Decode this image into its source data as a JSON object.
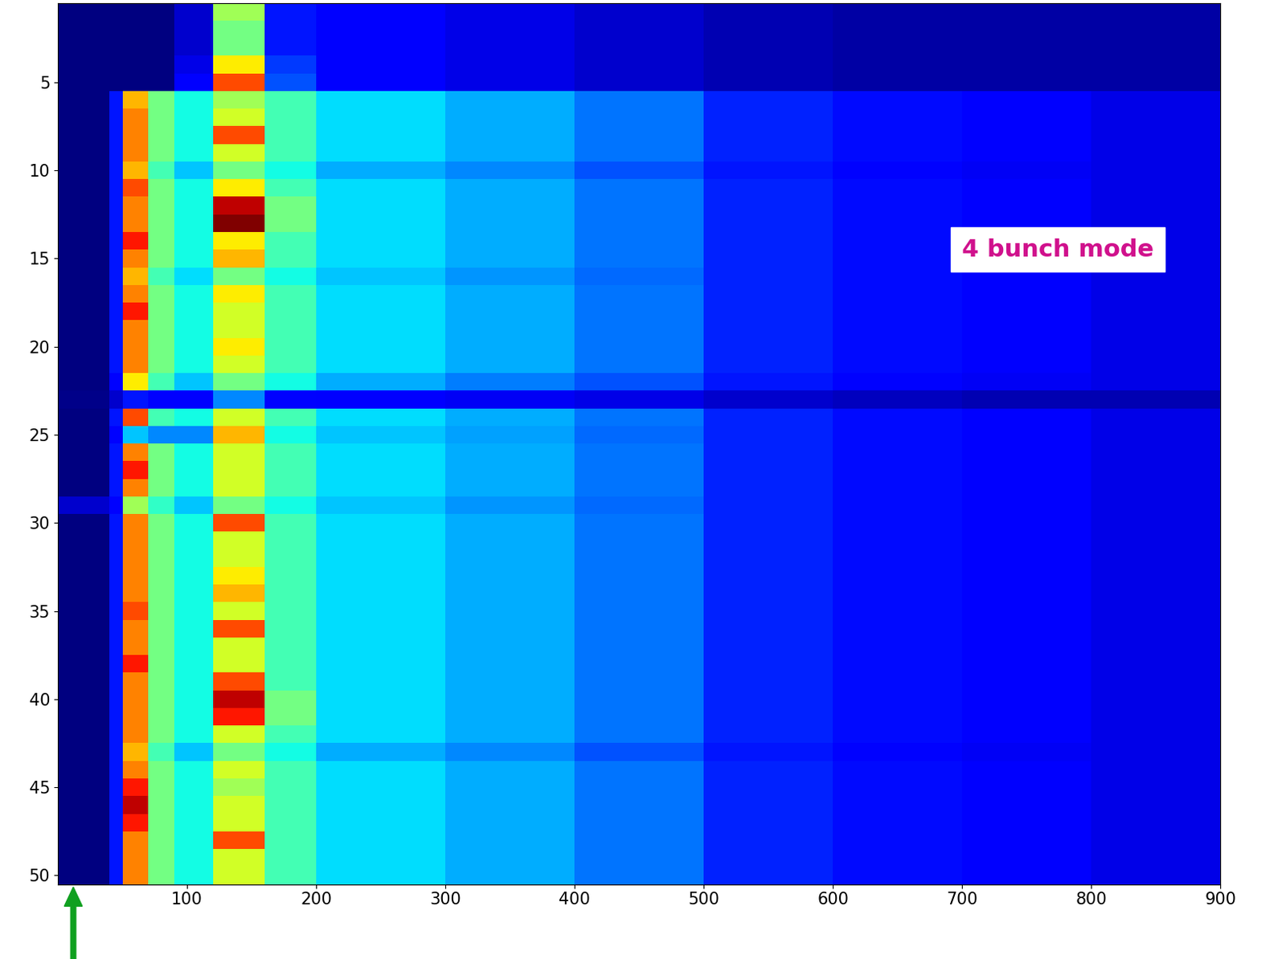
{
  "chart_data": {
    "type": "heatmap",
    "annotations": [
      "4 bunch mode"
    ],
    "xlim": [
      0,
      900
    ],
    "xticks": [
      100,
      200,
      300,
      400,
      500,
      600,
      700,
      800,
      900
    ],
    "ylim": [
      50.5,
      0.5
    ],
    "yticks": [
      5,
      10,
      15,
      20,
      25,
      30,
      35,
      40,
      45,
      50
    ],
    "grid": false,
    "bins": [
      0,
      40,
      50,
      70,
      90,
      120,
      160,
      200,
      300,
      400,
      500,
      600,
      700,
      800,
      900
    ],
    "y": [
      1,
      2,
      3,
      4,
      5,
      6,
      7,
      8,
      9,
      10,
      11,
      12,
      13,
      14,
      15,
      16,
      17,
      18,
      19,
      20,
      21,
      22,
      23,
      24,
      25,
      26,
      27,
      28,
      29,
      30,
      31,
      32,
      33,
      34,
      35,
      36,
      37,
      38,
      39,
      40,
      41,
      42,
      43,
      44,
      45,
      46,
      47,
      48,
      49,
      50
    ],
    "cells": [
      [
        0.2,
        0.2,
        0.2,
        0.2,
        0.8,
        5,
        1.5,
        1.2,
        1,
        0.8,
        0.6,
        0.5,
        0.5,
        0.5
      ],
      [
        0.2,
        0.2,
        0.2,
        0.2,
        0.8,
        4.5,
        1.5,
        1.2,
        1,
        0.8,
        0.6,
        0.5,
        0.5,
        0.5
      ],
      [
        0.2,
        0.2,
        0.2,
        0.2,
        0.8,
        4.5,
        1.5,
        1.2,
        1,
        0.8,
        0.6,
        0.5,
        0.5,
        0.5
      ],
      [
        0.2,
        0.2,
        0.2,
        0.2,
        1,
        6,
        1.8,
        1.2,
        1,
        0.8,
        0.6,
        0.5,
        0.5,
        0.5
      ],
      [
        0.2,
        0.2,
        0.2,
        0.2,
        1.2,
        7.5,
        2,
        1.2,
        1,
        0.8,
        0.6,
        0.5,
        0.5,
        0.5
      ],
      [
        0.2,
        1.5,
        6.5,
        4.5,
        3.5,
        5,
        4,
        3.2,
        2.8,
        2.3,
        1.6,
        1.4,
        1.2,
        1.0
      ],
      [
        0.2,
        1.5,
        7,
        4.5,
        3.5,
        5.5,
        4,
        3.2,
        2.8,
        2.3,
        1.6,
        1.4,
        1.2,
        1.0
      ],
      [
        0.2,
        1.5,
        7,
        4.5,
        3.5,
        7.5,
        4,
        3.2,
        2.8,
        2.3,
        1.6,
        1.4,
        1.2,
        1.0
      ],
      [
        0.2,
        1.5,
        7,
        4.5,
        3.5,
        5.5,
        4,
        3.2,
        2.8,
        2.3,
        1.6,
        1.4,
        1.2,
        1.0
      ],
      [
        0.2,
        1.5,
        6.5,
        4,
        3,
        4.5,
        3.5,
        2.8,
        2.5,
        2,
        1.5,
        1.3,
        1.1,
        1.0
      ],
      [
        0.2,
        1.5,
        7.5,
        4.5,
        3.5,
        6,
        4,
        3.2,
        2.8,
        2.3,
        1.6,
        1.4,
        1.2,
        1.0
      ],
      [
        0.2,
        1.5,
        7,
        4.5,
        3.5,
        8.5,
        4.5,
        3.2,
        2.8,
        2.3,
        1.6,
        1.4,
        1.2,
        1.0
      ],
      [
        0.2,
        1.5,
        7,
        4.5,
        3.5,
        9,
        4.5,
        3.2,
        2.8,
        2.3,
        1.6,
        1.4,
        1.2,
        1.0
      ],
      [
        0.2,
        1.5,
        8,
        4.5,
        3.5,
        6,
        4,
        3.2,
        2.8,
        2.3,
        1.6,
        1.4,
        1.2,
        1.0
      ],
      [
        0.2,
        1.5,
        7,
        4.5,
        3.5,
        6.5,
        4,
        3.2,
        2.8,
        2.3,
        1.6,
        1.4,
        1.2,
        1.0
      ],
      [
        0.2,
        1.5,
        6.5,
        4,
        3.2,
        4.5,
        3.5,
        3,
        2.6,
        2.2,
        1.6,
        1.4,
        1.2,
        1.0
      ],
      [
        0.2,
        1.5,
        7,
        4.5,
        3.5,
        6,
        4,
        3.2,
        2.8,
        2.3,
        1.6,
        1.4,
        1.2,
        1.0
      ],
      [
        0.2,
        1.5,
        8,
        4.5,
        3.5,
        5.5,
        4,
        3.2,
        2.8,
        2.3,
        1.6,
        1.4,
        1.2,
        1.0
      ],
      [
        0.2,
        1.5,
        7,
        4.5,
        3.5,
        5.5,
        4,
        3.2,
        2.8,
        2.3,
        1.6,
        1.4,
        1.2,
        1.0
      ],
      [
        0.2,
        1.5,
        7,
        4.5,
        3.5,
        6,
        4,
        3.2,
        2.8,
        2.3,
        1.6,
        1.4,
        1.2,
        1.0
      ],
      [
        0.2,
        1.5,
        7,
        4.5,
        3.5,
        5.5,
        4,
        3.2,
        2.8,
        2.3,
        1.6,
        1.4,
        1.2,
        1.0
      ],
      [
        0.2,
        1.3,
        6,
        4,
        3,
        4.5,
        3.5,
        2.8,
        2.4,
        2,
        1.5,
        1.3,
        1.1,
        1.0
      ],
      [
        0.3,
        0.8,
        1.5,
        1.2,
        1.2,
        2.5,
        1.3,
        1.2,
        1.1,
        1,
        0.8,
        0.7,
        0.6,
        0.6
      ],
      [
        0.2,
        1.5,
        7.5,
        4,
        3.5,
        5.5,
        4,
        3.2,
        2.8,
        2.3,
        1.6,
        1.4,
        1.2,
        1.0
      ],
      [
        0.2,
        1.3,
        3,
        2.5,
        2.5,
        6.5,
        3.5,
        3,
        2.7,
        2.2,
        1.6,
        1.4,
        1.2,
        1.0
      ],
      [
        0.2,
        1.5,
        7,
        4.5,
        3.5,
        5.5,
        4,
        3.2,
        2.8,
        2.3,
        1.6,
        1.4,
        1.2,
        1.0
      ],
      [
        0.2,
        1.5,
        8,
        4.5,
        3.5,
        5.5,
        4,
        3.2,
        2.8,
        2.3,
        1.6,
        1.4,
        1.2,
        1.0
      ],
      [
        0.2,
        1.5,
        7,
        4.5,
        3.5,
        5.5,
        4,
        3.2,
        2.8,
        2.3,
        1.6,
        1.4,
        1.2,
        1.0
      ],
      [
        0.8,
        1.3,
        5,
        3.8,
        3,
        4.5,
        3.5,
        3,
        2.6,
        2.2,
        1.6,
        1.4,
        1.2,
        1.0
      ],
      [
        0.2,
        1.5,
        7,
        4.5,
        3.5,
        7.5,
        4,
        3.2,
        2.8,
        2.3,
        1.6,
        1.4,
        1.2,
        1.0
      ],
      [
        0.2,
        1.5,
        7,
        4.5,
        3.5,
        5.5,
        4,
        3.2,
        2.8,
        2.3,
        1.6,
        1.4,
        1.2,
        1.0
      ],
      [
        0.2,
        1.5,
        7,
        4.5,
        3.5,
        5.5,
        4,
        3.2,
        2.8,
        2.3,
        1.6,
        1.4,
        1.2,
        1.0
      ],
      [
        0.2,
        1.5,
        7,
        4.5,
        3.5,
        6,
        4,
        3.2,
        2.8,
        2.3,
        1.6,
        1.4,
        1.2,
        1.0
      ],
      [
        0.2,
        1.5,
        7,
        4.5,
        3.5,
        6.5,
        4,
        3.2,
        2.8,
        2.3,
        1.6,
        1.4,
        1.2,
        1.0
      ],
      [
        0.2,
        1.5,
        7.5,
        4.5,
        3.5,
        5.5,
        4,
        3.2,
        2.8,
        2.3,
        1.6,
        1.4,
        1.2,
        1.0
      ],
      [
        0.2,
        1.5,
        7,
        4.5,
        3.5,
        7.5,
        4,
        3.2,
        2.8,
        2.3,
        1.6,
        1.4,
        1.2,
        1.0
      ],
      [
        0.2,
        1.5,
        7,
        4.5,
        3.5,
        5.5,
        4,
        3.2,
        2.8,
        2.3,
        1.6,
        1.4,
        1.2,
        1.0
      ],
      [
        0.2,
        1.5,
        8,
        4.5,
        3.5,
        5.5,
        4,
        3.2,
        2.8,
        2.3,
        1.6,
        1.4,
        1.2,
        1.0
      ],
      [
        0.2,
        1.5,
        7,
        4.5,
        3.5,
        7.5,
        4,
        3.2,
        2.8,
        2.3,
        1.6,
        1.4,
        1.2,
        1.0
      ],
      [
        0.2,
        1.5,
        7,
        4.5,
        3.5,
        8.5,
        4.5,
        3.2,
        2.8,
        2.3,
        1.6,
        1.4,
        1.2,
        1.0
      ],
      [
        0.2,
        1.5,
        7,
        4.5,
        3.5,
        8,
        4.5,
        3.2,
        2.8,
        2.3,
        1.6,
        1.4,
        1.2,
        1.0
      ],
      [
        0.2,
        1.5,
        7,
        4.5,
        3.5,
        5.5,
        4,
        3.2,
        2.8,
        2.3,
        1.6,
        1.4,
        1.2,
        1.0
      ],
      [
        0.2,
        1.5,
        6.5,
        4,
        3,
        4.5,
        3.5,
        2.8,
        2.5,
        2,
        1.5,
        1.3,
        1.1,
        1.0
      ],
      [
        0.2,
        1.5,
        7,
        4.5,
        3.5,
        5.5,
        4,
        3.2,
        2.8,
        2.3,
        1.6,
        1.4,
        1.2,
        1.0
      ],
      [
        0.2,
        1.5,
        8,
        4.5,
        3.5,
        5,
        4,
        3.2,
        2.8,
        2.3,
        1.6,
        1.4,
        1.2,
        1.0
      ],
      [
        0.2,
        1.5,
        8.5,
        4.5,
        3.5,
        5.5,
        4,
        3.2,
        2.8,
        2.3,
        1.6,
        1.4,
        1.2,
        1.0
      ],
      [
        0.2,
        1.5,
        8,
        4.5,
        3.5,
        5.5,
        4,
        3.2,
        2.8,
        2.3,
        1.6,
        1.4,
        1.2,
        1.0
      ],
      [
        0.2,
        1.5,
        7,
        4.5,
        3.5,
        7.5,
        4,
        3.2,
        2.8,
        2.3,
        1.6,
        1.4,
        1.2,
        1.0
      ],
      [
        0.2,
        1.5,
        7,
        4.5,
        3.5,
        5.5,
        4,
        3.2,
        2.8,
        2.3,
        1.6,
        1.4,
        1.2,
        1.0
      ],
      [
        0.2,
        1.5,
        7,
        4.5,
        3.5,
        5.5,
        4,
        3.2,
        2.8,
        2.3,
        1.6,
        1.4,
        1.2,
        1.0
      ]
    ]
  }
}
